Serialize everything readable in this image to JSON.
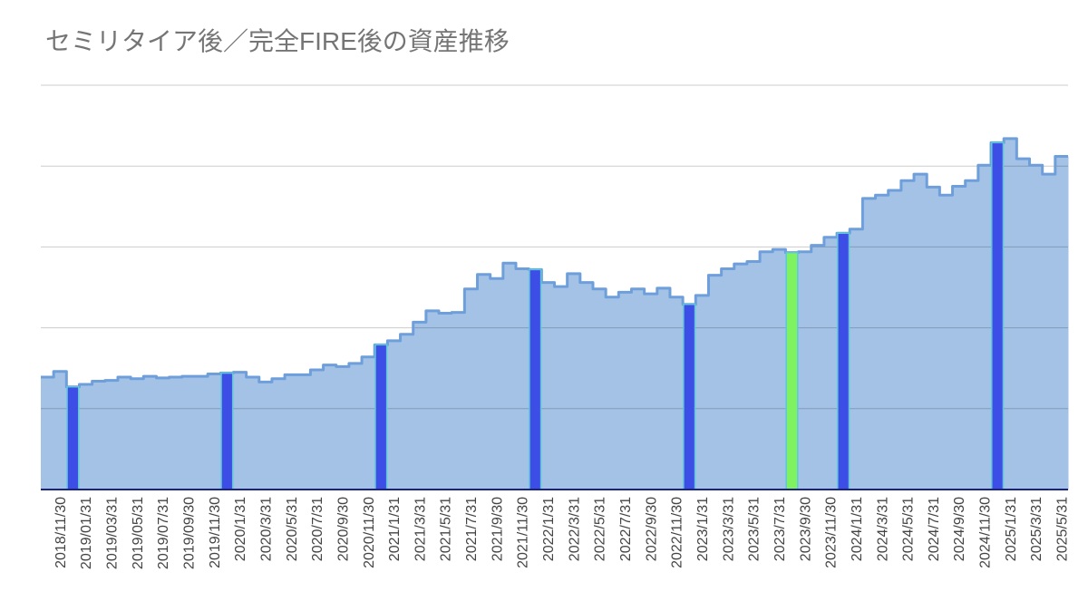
{
  "chart_data": {
    "type": "area",
    "stepped": true,
    "title": "セミリタイア後／完全FIRE後の資産推移",
    "xlabel": "",
    "ylabel": "",
    "ylim": [
      0,
      5
    ],
    "y_gridlines": [
      1,
      2,
      3,
      4,
      5
    ],
    "y_tick_labels_shown": false,
    "grid": true,
    "legend": "none",
    "colors": {
      "area_fill": "#a3c2e6",
      "area_line": "#6e9fdb",
      "gridline": "#cccccc",
      "baseline": "#1a237e",
      "highlight_outline": "#5ec8d8"
    },
    "x_tick_labels": [
      "2018/11/30",
      "2019/01/31",
      "2019/03/31",
      "2019/05/31",
      "2019/07/31",
      "2019/09/30",
      "2019/11/30",
      "2020/1/31",
      "2020/3/31",
      "2020/5/31",
      "2020/7/31",
      "2020/9/30",
      "2020/11/30",
      "2021/1/31",
      "2021/3/31",
      "2021/5/31",
      "2021/7/31",
      "2021/9/30",
      "2021/11/30",
      "2022/1/31",
      "2022/3/31",
      "2022/5/31",
      "2022/7/31",
      "2022/9/30",
      "2022/11/30",
      "2023/1/31",
      "2023/3/31",
      "2023/5/31",
      "2023/7/31",
      "2023/9/30",
      "2023/11/30",
      "2024/1/31",
      "2024/3/31",
      "2024/5/31",
      "2024/7/31",
      "2024/9/30",
      "2024/11/30",
      "2025/1/31",
      "2025/3/31",
      "2025/5/31"
    ],
    "points": [
      {
        "y": 1.39
      },
      {
        "y": 1.46
      },
      {
        "y": 1.27,
        "color": "#3d4ee6"
      },
      {
        "y": 1.3
      },
      {
        "y": 1.34
      },
      {
        "y": 1.35
      },
      {
        "y": 1.39
      },
      {
        "y": 1.37
      },
      {
        "y": 1.4
      },
      {
        "y": 1.38
      },
      {
        "y": 1.39
      },
      {
        "y": 1.4
      },
      {
        "y": 1.4
      },
      {
        "y": 1.43
      },
      {
        "y": 1.44,
        "color": "#3d4ee6"
      },
      {
        "y": 1.45
      },
      {
        "y": 1.39
      },
      {
        "y": 1.33
      },
      {
        "y": 1.37
      },
      {
        "y": 1.42
      },
      {
        "y": 1.42
      },
      {
        "y": 1.48
      },
      {
        "y": 1.54
      },
      {
        "y": 1.52
      },
      {
        "y": 1.56
      },
      {
        "y": 1.64
      },
      {
        "y": 1.79,
        "color": "#3d4ee6"
      },
      {
        "y": 1.84
      },
      {
        "y": 1.92
      },
      {
        "y": 2.07
      },
      {
        "y": 2.21
      },
      {
        "y": 2.18
      },
      {
        "y": 2.19
      },
      {
        "y": 2.48
      },
      {
        "y": 2.66
      },
      {
        "y": 2.61
      },
      {
        "y": 2.8
      },
      {
        "y": 2.73
      },
      {
        "y": 2.72,
        "color": "#3d4ee6"
      },
      {
        "y": 2.56
      },
      {
        "y": 2.51
      },
      {
        "y": 2.67
      },
      {
        "y": 2.56
      },
      {
        "y": 2.48
      },
      {
        "y": 2.38
      },
      {
        "y": 2.44
      },
      {
        "y": 2.48
      },
      {
        "y": 2.42
      },
      {
        "y": 2.49
      },
      {
        "y": 2.38
      },
      {
        "y": 2.29,
        "color": "#3d4ee6"
      },
      {
        "y": 2.4
      },
      {
        "y": 2.65
      },
      {
        "y": 2.73
      },
      {
        "y": 2.79
      },
      {
        "y": 2.82
      },
      {
        "y": 2.94
      },
      {
        "y": 2.97
      },
      {
        "y": 2.93,
        "color": "#7ef260"
      },
      {
        "y": 2.94
      },
      {
        "y": 3.02
      },
      {
        "y": 3.12
      },
      {
        "y": 3.17,
        "color": "#3d4ee6"
      },
      {
        "y": 3.22
      },
      {
        "y": 3.6
      },
      {
        "y": 3.64
      },
      {
        "y": 3.7
      },
      {
        "y": 3.82
      },
      {
        "y": 3.9
      },
      {
        "y": 3.74
      },
      {
        "y": 3.64
      },
      {
        "y": 3.75
      },
      {
        "y": 3.82
      },
      {
        "y": 4.01
      },
      {
        "y": 4.29,
        "color": "#3d4ee6"
      },
      {
        "y": 4.34
      },
      {
        "y": 4.09
      },
      {
        "y": 4.01
      },
      {
        "y": 3.9
      },
      {
        "y": 4.12
      }
    ]
  }
}
